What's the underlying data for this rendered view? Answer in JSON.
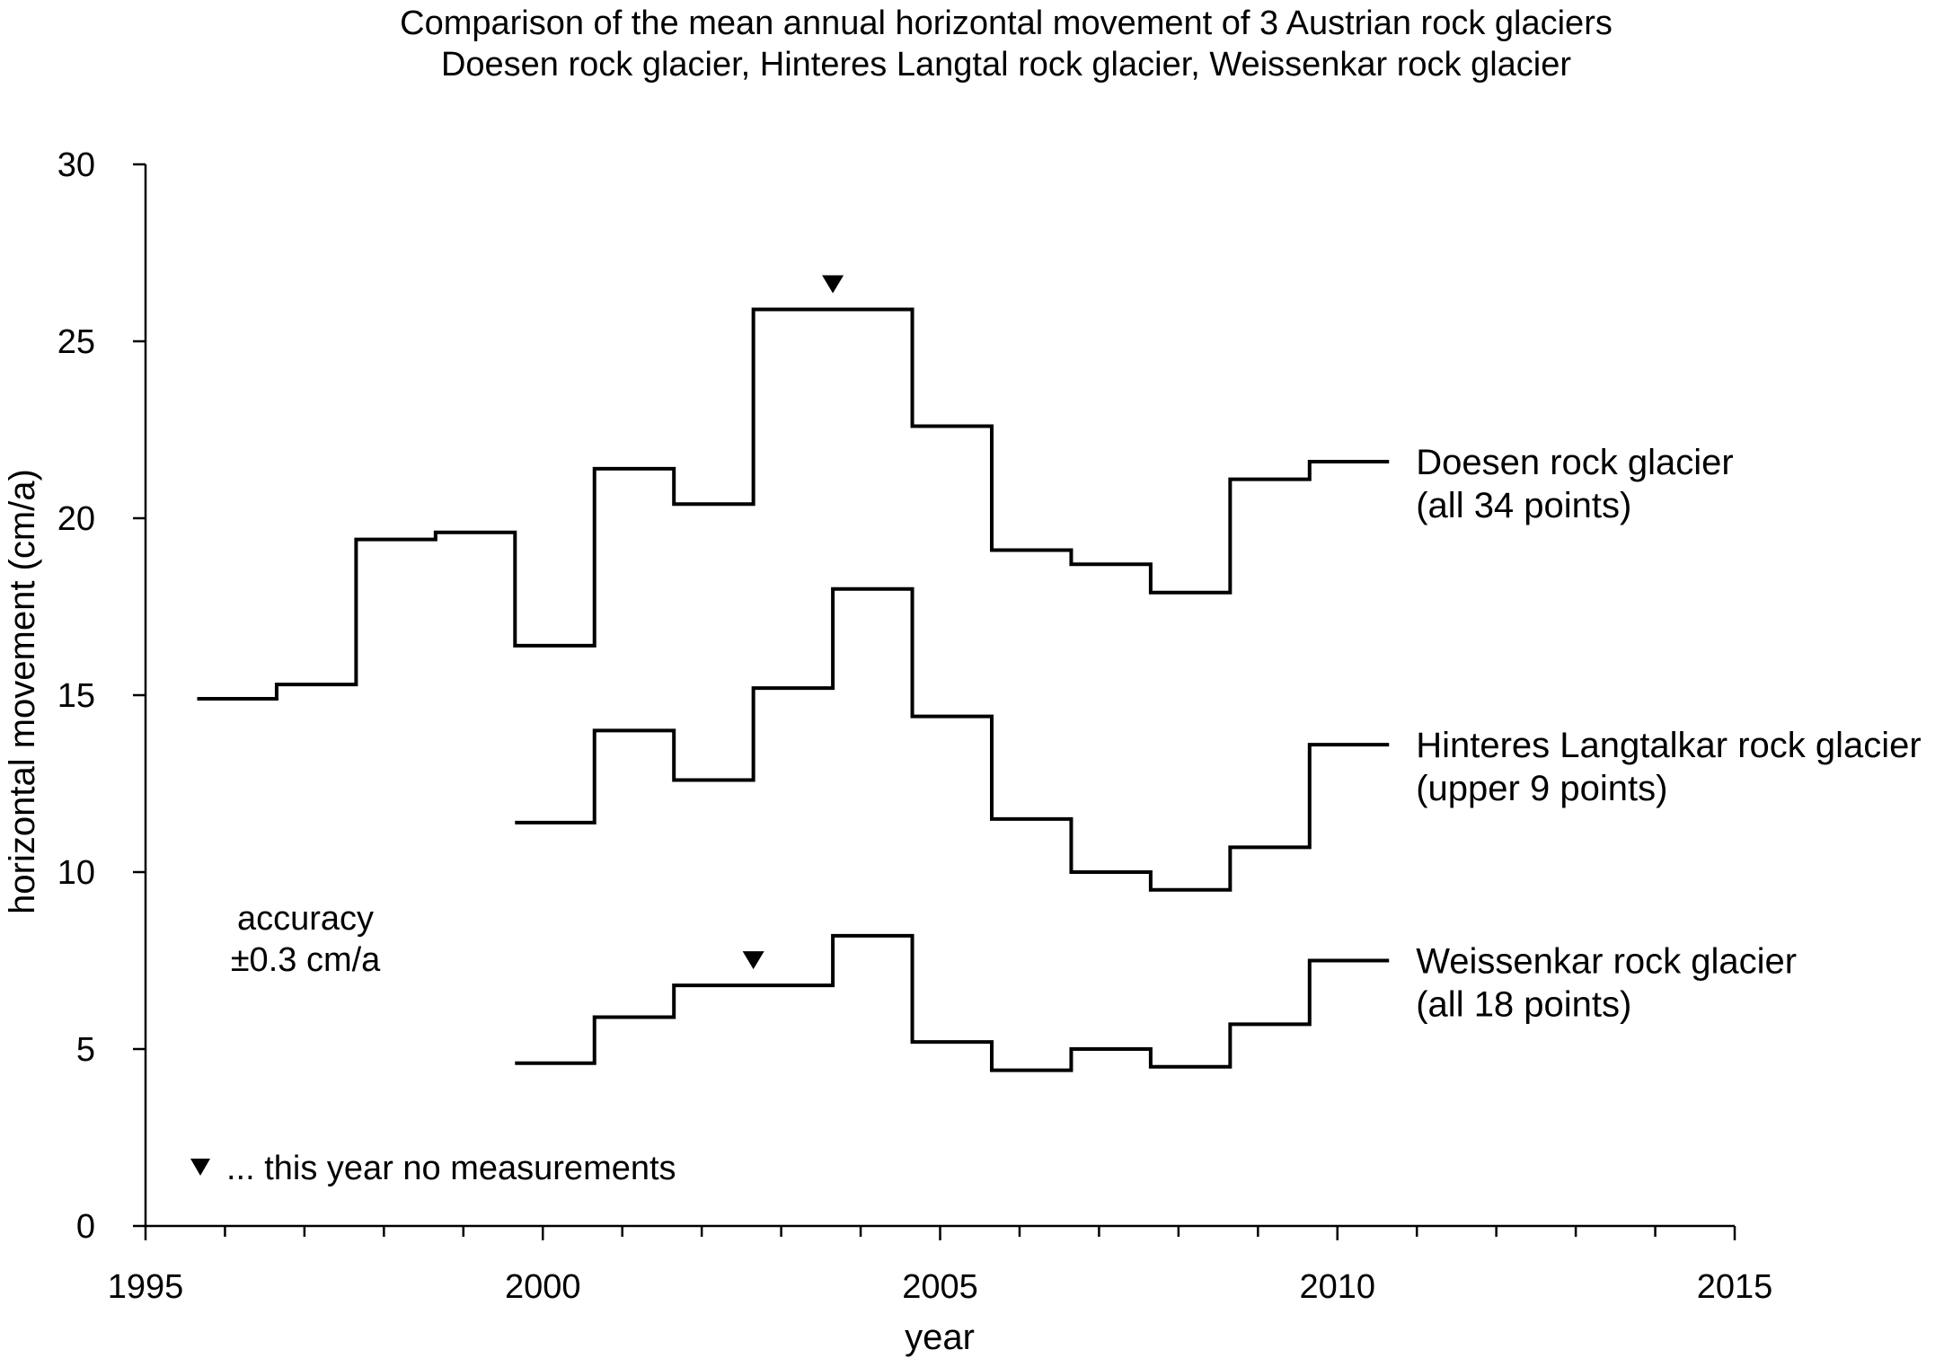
{
  "chart_data": {
    "type": "line",
    "title": "Comparison of the mean annual horizontal movement of 3 Austrian rock glaciers",
    "subtitle": "Doesen rock glacier, Hinteres Langtal rock glacier, Weissenkar rock glacier",
    "xlabel": "year",
    "ylabel": "horizontal movement (cm/a)",
    "xlim": [
      1995,
      2015
    ],
    "ylim": [
      0,
      30
    ],
    "xticks": [
      1995,
      2000,
      2005,
      2010,
      2015
    ],
    "yticks": [
      0,
      5,
      10,
      15,
      20,
      25,
      30
    ],
    "grid": false,
    "series": [
      {
        "name": "Doesen rock glacier",
        "note": "(all 34 points)",
        "steps": [
          {
            "x0": 1995.65,
            "x1": 1996.65,
            "y": 14.9
          },
          {
            "x0": 1996.65,
            "x1": 1997.65,
            "y": 15.3
          },
          {
            "x0": 1997.65,
            "x1": 1998.65,
            "y": 19.4
          },
          {
            "x0": 1998.65,
            "x1": 1999.65,
            "y": 19.6
          },
          {
            "x0": 1999.65,
            "x1": 2000.65,
            "y": 16.4
          },
          {
            "x0": 2000.65,
            "x1": 2001.65,
            "y": 21.4
          },
          {
            "x0": 2001.65,
            "x1": 2002.65,
            "y": 20.4
          },
          {
            "x0": 2002.65,
            "x1": 2004.65,
            "y": 25.9
          },
          {
            "x0": 2004.65,
            "x1": 2005.65,
            "y": 22.6
          },
          {
            "x0": 2005.65,
            "x1": 2006.65,
            "y": 19.1
          },
          {
            "x0": 2006.65,
            "x1": 2007.65,
            "y": 18.7
          },
          {
            "x0": 2007.65,
            "x1": 2008.65,
            "y": 17.9
          },
          {
            "x0": 2008.65,
            "x1": 2009.65,
            "y": 21.1
          },
          {
            "x0": 2009.65,
            "x1": 2010.65,
            "y": 21.6
          }
        ],
        "no_measurement_years": [
          2003.65
        ]
      },
      {
        "name": "Hinteres Langtalkar rock glacier",
        "note": "(upper 9 points)",
        "steps": [
          {
            "x0": 1999.65,
            "x1": 2000.65,
            "y": 11.4
          },
          {
            "x0": 2000.65,
            "x1": 2001.65,
            "y": 14.0
          },
          {
            "x0": 2001.65,
            "x1": 2002.65,
            "y": 12.6
          },
          {
            "x0": 2002.65,
            "x1": 2003.65,
            "y": 15.2
          },
          {
            "x0": 2003.65,
            "x1": 2004.65,
            "y": 18.0
          },
          {
            "x0": 2004.65,
            "x1": 2005.65,
            "y": 14.4
          },
          {
            "x0": 2005.65,
            "x1": 2006.65,
            "y": 11.5
          },
          {
            "x0": 2006.65,
            "x1": 2007.65,
            "y": 10.0
          },
          {
            "x0": 2007.65,
            "x1": 2008.65,
            "y": 9.5
          },
          {
            "x0": 2008.65,
            "x1": 2009.65,
            "y": 10.7
          },
          {
            "x0": 2009.65,
            "x1": 2010.65,
            "y": 13.6
          }
        ],
        "no_measurement_years": []
      },
      {
        "name": "Weissenkar rock glacier",
        "note": "(all 18 points)",
        "steps": [
          {
            "x0": 1999.65,
            "x1": 2000.65,
            "y": 4.6
          },
          {
            "x0": 2000.65,
            "x1": 2001.65,
            "y": 5.9
          },
          {
            "x0": 2001.65,
            "x1": 2003.65,
            "y": 6.8
          },
          {
            "x0": 2003.65,
            "x1": 2004.65,
            "y": 8.2
          },
          {
            "x0": 2004.65,
            "x1": 2005.65,
            "y": 5.2
          },
          {
            "x0": 2005.65,
            "x1": 2006.65,
            "y": 4.4
          },
          {
            "x0": 2006.65,
            "x1": 2007.65,
            "y": 5.0
          },
          {
            "x0": 2007.65,
            "x1": 2008.65,
            "y": 4.5
          },
          {
            "x0": 2008.65,
            "x1": 2009.65,
            "y": 5.7
          },
          {
            "x0": 2009.65,
            "x1": 2010.65,
            "y": 7.5
          }
        ],
        "no_measurement_years": [
          2002.65
        ]
      }
    ],
    "annotations": {
      "accuracy_line1": "accuracy",
      "accuracy_line2": "±0.3 cm/a",
      "legend_text": "... this year no measurements"
    }
  }
}
